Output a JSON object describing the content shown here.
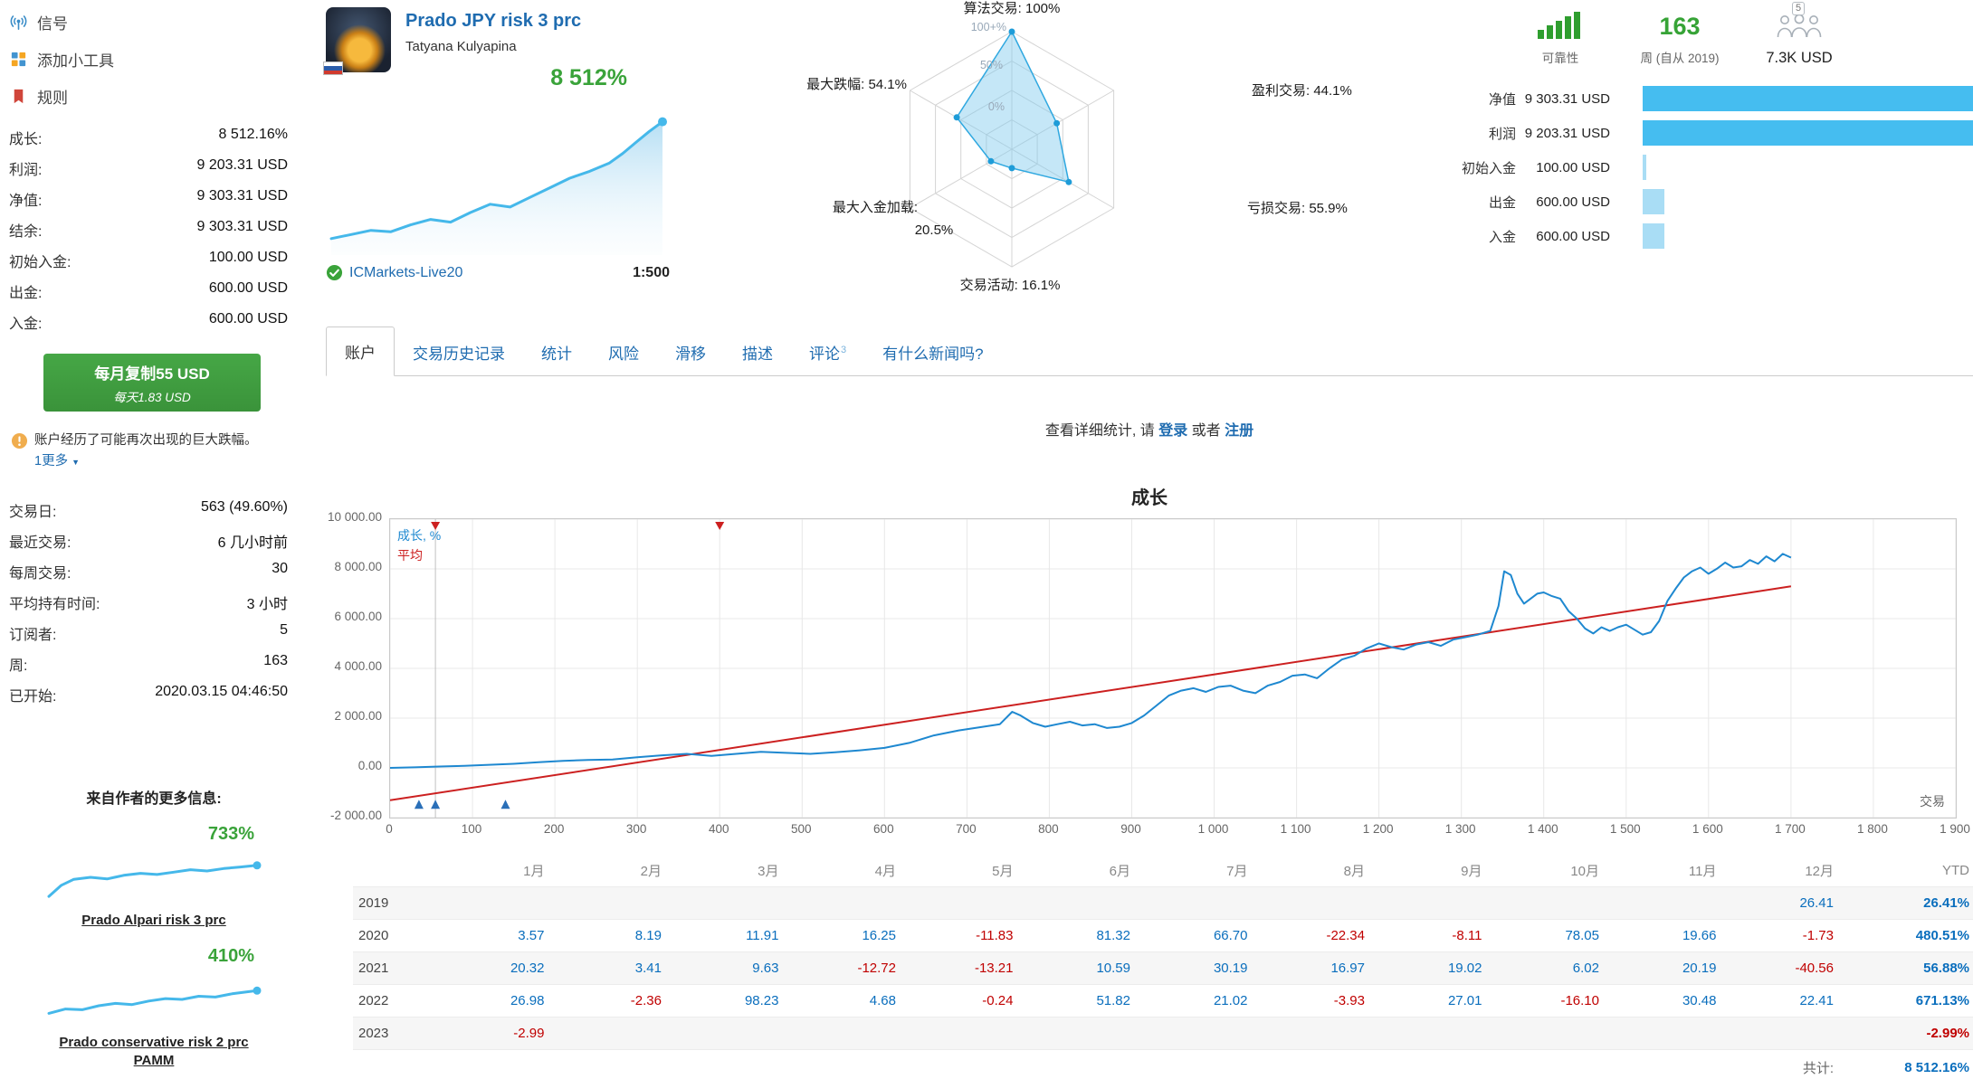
{
  "sidebar": {
    "nav": [
      {
        "label": "信号",
        "icon": "signal-icon"
      },
      {
        "label": "添加小工具",
        "icon": "widgets-icon"
      },
      {
        "label": "规则",
        "icon": "rules-flag-icon"
      }
    ],
    "stats_top": [
      {
        "label": "成长:",
        "value": "8 512.16%"
      },
      {
        "label": "利润:",
        "value": "9 203.31 USD"
      },
      {
        "label": "净值:",
        "value": "9 303.31 USD"
      },
      {
        "label": "结余:",
        "value": "9 303.31 USD"
      },
      {
        "label": "初始入金:",
        "value": "100.00 USD"
      },
      {
        "label": "出金:",
        "value": "600.00 USD"
      },
      {
        "label": "入金:",
        "value": "600.00 USD"
      }
    ],
    "subscribe_button": {
      "line1": "每月复制55 USD",
      "line2": "每天1.83 USD"
    },
    "warning": {
      "text": "账户经历了可能再次出现的巨大跌幅。",
      "more_link": "1更多"
    },
    "stats_bottom": [
      {
        "label": "交易日:",
        "value": "563 (49.60%)"
      },
      {
        "label": "最近交易:",
        "value": "6 几小时前"
      },
      {
        "label": "每周交易:",
        "value": "30"
      },
      {
        "label": "平均持有时间:",
        "value": "3 小时"
      },
      {
        "label": "订阅者:",
        "value": "5"
      },
      {
        "label": "周:",
        "value": "163"
      },
      {
        "label": "已开始:",
        "value": "2020.03.15 04:46:50"
      }
    ],
    "more_from_author": {
      "title": "来自作者的更多信息:",
      "signals": [
        {
          "growth": "733%",
          "name": "Prado Alpari risk 3 prc",
          "spark": [
            [
              0,
              2
            ],
            [
              6,
              30
            ],
            [
              12,
              45
            ],
            [
              20,
              50
            ],
            [
              28,
              46
            ],
            [
              36,
              55
            ],
            [
              44,
              60
            ],
            [
              52,
              57
            ],
            [
              60,
              63
            ],
            [
              68,
              69
            ],
            [
              76,
              66
            ],
            [
              84,
              72
            ],
            [
              92,
              76
            ],
            [
              100,
              80
            ]
          ]
        },
        {
          "growth": "410%",
          "name": "Prado conservative risk 2 prc PAMM",
          "spark": [
            [
              0,
              15
            ],
            [
              8,
              26
            ],
            [
              16,
              24
            ],
            [
              24,
              34
            ],
            [
              32,
              40
            ],
            [
              40,
              37
            ],
            [
              48,
              46
            ],
            [
              56,
              52
            ],
            [
              64,
              50
            ],
            [
              72,
              58
            ],
            [
              80,
              56
            ],
            [
              88,
              64
            ],
            [
              100,
              72
            ]
          ]
        }
      ]
    }
  },
  "header": {
    "title": "Prado JPY risk 3 prc",
    "author": "Tatyana Kulyapina",
    "growth_label": "8 512%",
    "broker": "ICMarkets-Live20",
    "leverage": "1:500",
    "spark": [
      [
        0,
        8
      ],
      [
        6,
        11
      ],
      [
        12,
        14
      ],
      [
        18,
        13
      ],
      [
        24,
        18
      ],
      [
        30,
        22
      ],
      [
        36,
        20
      ],
      [
        42,
        27
      ],
      [
        48,
        33
      ],
      [
        54,
        31
      ],
      [
        60,
        38
      ],
      [
        66,
        45
      ],
      [
        72,
        52
      ],
      [
        78,
        57
      ],
      [
        84,
        63
      ],
      [
        88,
        70
      ],
      [
        92,
        78
      ],
      [
        96,
        86
      ],
      [
        100,
        93
      ]
    ],
    "reliability_label": "可靠性",
    "weeks_value": "163",
    "weeks_label": "周 (自从 2019)",
    "subscribers_count": "5",
    "funds": "7.3K USD",
    "bars": [
      {
        "label": "净值",
        "value": "9 303.31 USD",
        "pct": 100
      },
      {
        "label": "利润",
        "value": "9 203.31 USD",
        "pct": 100
      },
      {
        "label": "初始入金",
        "value": "100.00 USD",
        "pct": 1.2
      },
      {
        "label": "出金",
        "value": "600.00 USD",
        "pct": 6.5
      },
      {
        "label": "入金",
        "value": "600.00 USD",
        "pct": 6.5
      }
    ]
  },
  "radar": {
    "rings": [
      "0%",
      "50%",
      "100+%"
    ],
    "axes": [
      {
        "name": "算法交易",
        "display": "100%",
        "value": 100
      },
      {
        "name": "盈利交易",
        "display": "44.1%",
        "value": 44.1
      },
      {
        "name": "亏损交易",
        "display": "55.9%",
        "value": 55.9
      },
      {
        "name": "交易活动",
        "display": "16.1%",
        "value": 16.1
      },
      {
        "name": "最大入金加载",
        "display": "20.5%",
        "value": 20.5
      },
      {
        "name": "最大跌幅",
        "display": "54.1%",
        "value": 54.1
      }
    ]
  },
  "tabs": [
    {
      "label": "账户",
      "active": true
    },
    {
      "label": "交易历史记录"
    },
    {
      "label": "统计"
    },
    {
      "label": "风险"
    },
    {
      "label": "滑移"
    },
    {
      "label": "描述"
    },
    {
      "label": "评论",
      "sup": "3"
    },
    {
      "label": "有什么新闻吗?"
    }
  ],
  "login_prompt": {
    "prefix": "查看详细统计, 请",
    "login": "登录",
    "middle": "或者",
    "register": "注册"
  },
  "chart_data": {
    "type": "line",
    "title": "成长",
    "xlabel": "交易",
    "xlim": [
      0,
      1900
    ],
    "ylim": [
      -2000,
      10000
    ],
    "x_tick_step": 100,
    "x_tick_labels": [
      "0",
      "100",
      "200",
      "300",
      "400",
      "500",
      "600",
      "700",
      "800",
      "900",
      "1 000",
      "1 100",
      "1 200",
      "1 300",
      "1 400",
      "1 500",
      "1 600",
      "1 700",
      "1 800",
      "1 900"
    ],
    "y_tick_labels": [
      "10 000.00",
      "8 000.00",
      "6 000.00",
      "4 000.00",
      "2 000.00",
      "0.00",
      "-2 000.00"
    ],
    "start_line_x": 55,
    "top_markers_x": [
      55,
      400
    ],
    "bottom_markers_x": [
      35,
      55,
      140
    ],
    "series": [
      {
        "name": "成长, %",
        "color": "#1e88d0",
        "points": [
          [
            0,
            0
          ],
          [
            30,
            20
          ],
          [
            60,
            55
          ],
          [
            90,
            85
          ],
          [
            120,
            125
          ],
          [
            150,
            165
          ],
          [
            180,
            225
          ],
          [
            210,
            285
          ],
          [
            240,
            315
          ],
          [
            270,
            335
          ],
          [
            300,
            425
          ],
          [
            330,
            505
          ],
          [
            360,
            565
          ],
          [
            390,
            485
          ],
          [
            420,
            565
          ],
          [
            450,
            645
          ],
          [
            480,
            605
          ],
          [
            510,
            565
          ],
          [
            540,
            625
          ],
          [
            570,
            705
          ],
          [
            600,
            805
          ],
          [
            630,
            1005
          ],
          [
            660,
            1305
          ],
          [
            690,
            1505
          ],
          [
            720,
            1655
          ],
          [
            740,
            1755
          ],
          [
            755,
            2255
          ],
          [
            765,
            2105
          ],
          [
            780,
            1805
          ],
          [
            795,
            1655
          ],
          [
            810,
            1755
          ],
          [
            825,
            1855
          ],
          [
            840,
            1705
          ],
          [
            855,
            1755
          ],
          [
            870,
            1605
          ],
          [
            885,
            1655
          ],
          [
            900,
            1805
          ],
          [
            915,
            2105
          ],
          [
            930,
            2505
          ],
          [
            945,
            2905
          ],
          [
            960,
            3105
          ],
          [
            975,
            3205
          ],
          [
            990,
            3055
          ],
          [
            1005,
            3255
          ],
          [
            1020,
            3305
          ],
          [
            1035,
            3105
          ],
          [
            1050,
            3005
          ],
          [
            1065,
            3305
          ],
          [
            1080,
            3455
          ],
          [
            1095,
            3705
          ],
          [
            1110,
            3755
          ],
          [
            1125,
            3605
          ],
          [
            1140,
            4005
          ],
          [
            1155,
            4355
          ],
          [
            1170,
            4505
          ],
          [
            1185,
            4805
          ],
          [
            1200,
            5005
          ],
          [
            1215,
            4855
          ],
          [
            1230,
            4755
          ],
          [
            1245,
            4955
          ],
          [
            1260,
            5055
          ],
          [
            1275,
            4905
          ],
          [
            1290,
            5155
          ],
          [
            1305,
            5255
          ],
          [
            1320,
            5355
          ],
          [
            1335,
            5505
          ],
          [
            1345,
            6505
          ],
          [
            1352,
            7905
          ],
          [
            1360,
            7755
          ],
          [
            1368,
            7005
          ],
          [
            1376,
            6605
          ],
          [
            1384,
            6805
          ],
          [
            1392,
            7005
          ],
          [
            1400,
            7055
          ],
          [
            1410,
            6905
          ],
          [
            1420,
            6805
          ],
          [
            1430,
            6305
          ],
          [
            1440,
            6005
          ],
          [
            1450,
            5605
          ],
          [
            1460,
            5405
          ],
          [
            1470,
            5655
          ],
          [
            1480,
            5505
          ],
          [
            1490,
            5655
          ],
          [
            1500,
            5755
          ],
          [
            1510,
            5555
          ],
          [
            1520,
            5355
          ],
          [
            1530,
            5455
          ],
          [
            1540,
            5905
          ],
          [
            1550,
            6705
          ],
          [
            1560,
            7205
          ],
          [
            1570,
            7655
          ],
          [
            1580,
            7905
          ],
          [
            1590,
            8055
          ],
          [
            1600,
            7805
          ],
          [
            1610,
            8005
          ],
          [
            1620,
            8255
          ],
          [
            1630,
            8055
          ],
          [
            1640,
            8105
          ],
          [
            1650,
            8355
          ],
          [
            1660,
            8205
          ],
          [
            1670,
            8505
          ],
          [
            1680,
            8305
          ],
          [
            1690,
            8605
          ],
          [
            1700,
            8455
          ]
        ]
      },
      {
        "name": "平均",
        "color": "#cc2020",
        "points": [
          [
            0,
            -1300
          ],
          [
            1700,
            7300
          ]
        ]
      }
    ]
  },
  "monthly_table": {
    "columns": [
      "1月",
      "2月",
      "3月",
      "4月",
      "5月",
      "6月",
      "7月",
      "8月",
      "9月",
      "10月",
      "11月",
      "12月",
      "YTD"
    ],
    "rows": [
      {
        "year": "2019",
        "values": [
          "",
          "",
          "",
          "",
          "",
          "",
          "",
          "",
          "",
          "",
          "",
          "26.41",
          "26.41%"
        ]
      },
      {
        "year": "2020",
        "values": [
          "3.57",
          "8.19",
          "11.91",
          "16.25",
          "-11.83",
          "81.32",
          "66.70",
          "-22.34",
          "-8.11",
          "78.05",
          "19.66",
          "-1.73",
          "480.51%"
        ]
      },
      {
        "year": "2021",
        "values": [
          "20.32",
          "3.41",
          "9.63",
          "-12.72",
          "-13.21",
          "10.59",
          "30.19",
          "16.97",
          "19.02",
          "6.02",
          "20.19",
          "-40.56",
          "56.88%"
        ]
      },
      {
        "year": "2022",
        "values": [
          "26.98",
          "-2.36",
          "98.23",
          "4.68",
          "-0.24",
          "51.82",
          "21.02",
          "-3.93",
          "27.01",
          "-16.10",
          "30.48",
          "22.41",
          "671.13%"
        ]
      },
      {
        "year": "2023",
        "values": [
          "-2.99",
          "",
          "",
          "",
          "",
          "",
          "",
          "",
          "",
          "",
          "",
          "",
          "-2.99%"
        ]
      }
    ],
    "total_label": "共计:",
    "total_value": "8 512.16%"
  },
  "colors": {
    "accent_blue": "#1f6cb0",
    "chart_blue": "#1e88d0",
    "chart_red": "#cc2020",
    "green": "#3aa33a",
    "bar_blue": "#45bdf0",
    "bar_blue_light": "#a9ddf5",
    "positive": "#0a6ebd",
    "negative": "#c00000"
  }
}
